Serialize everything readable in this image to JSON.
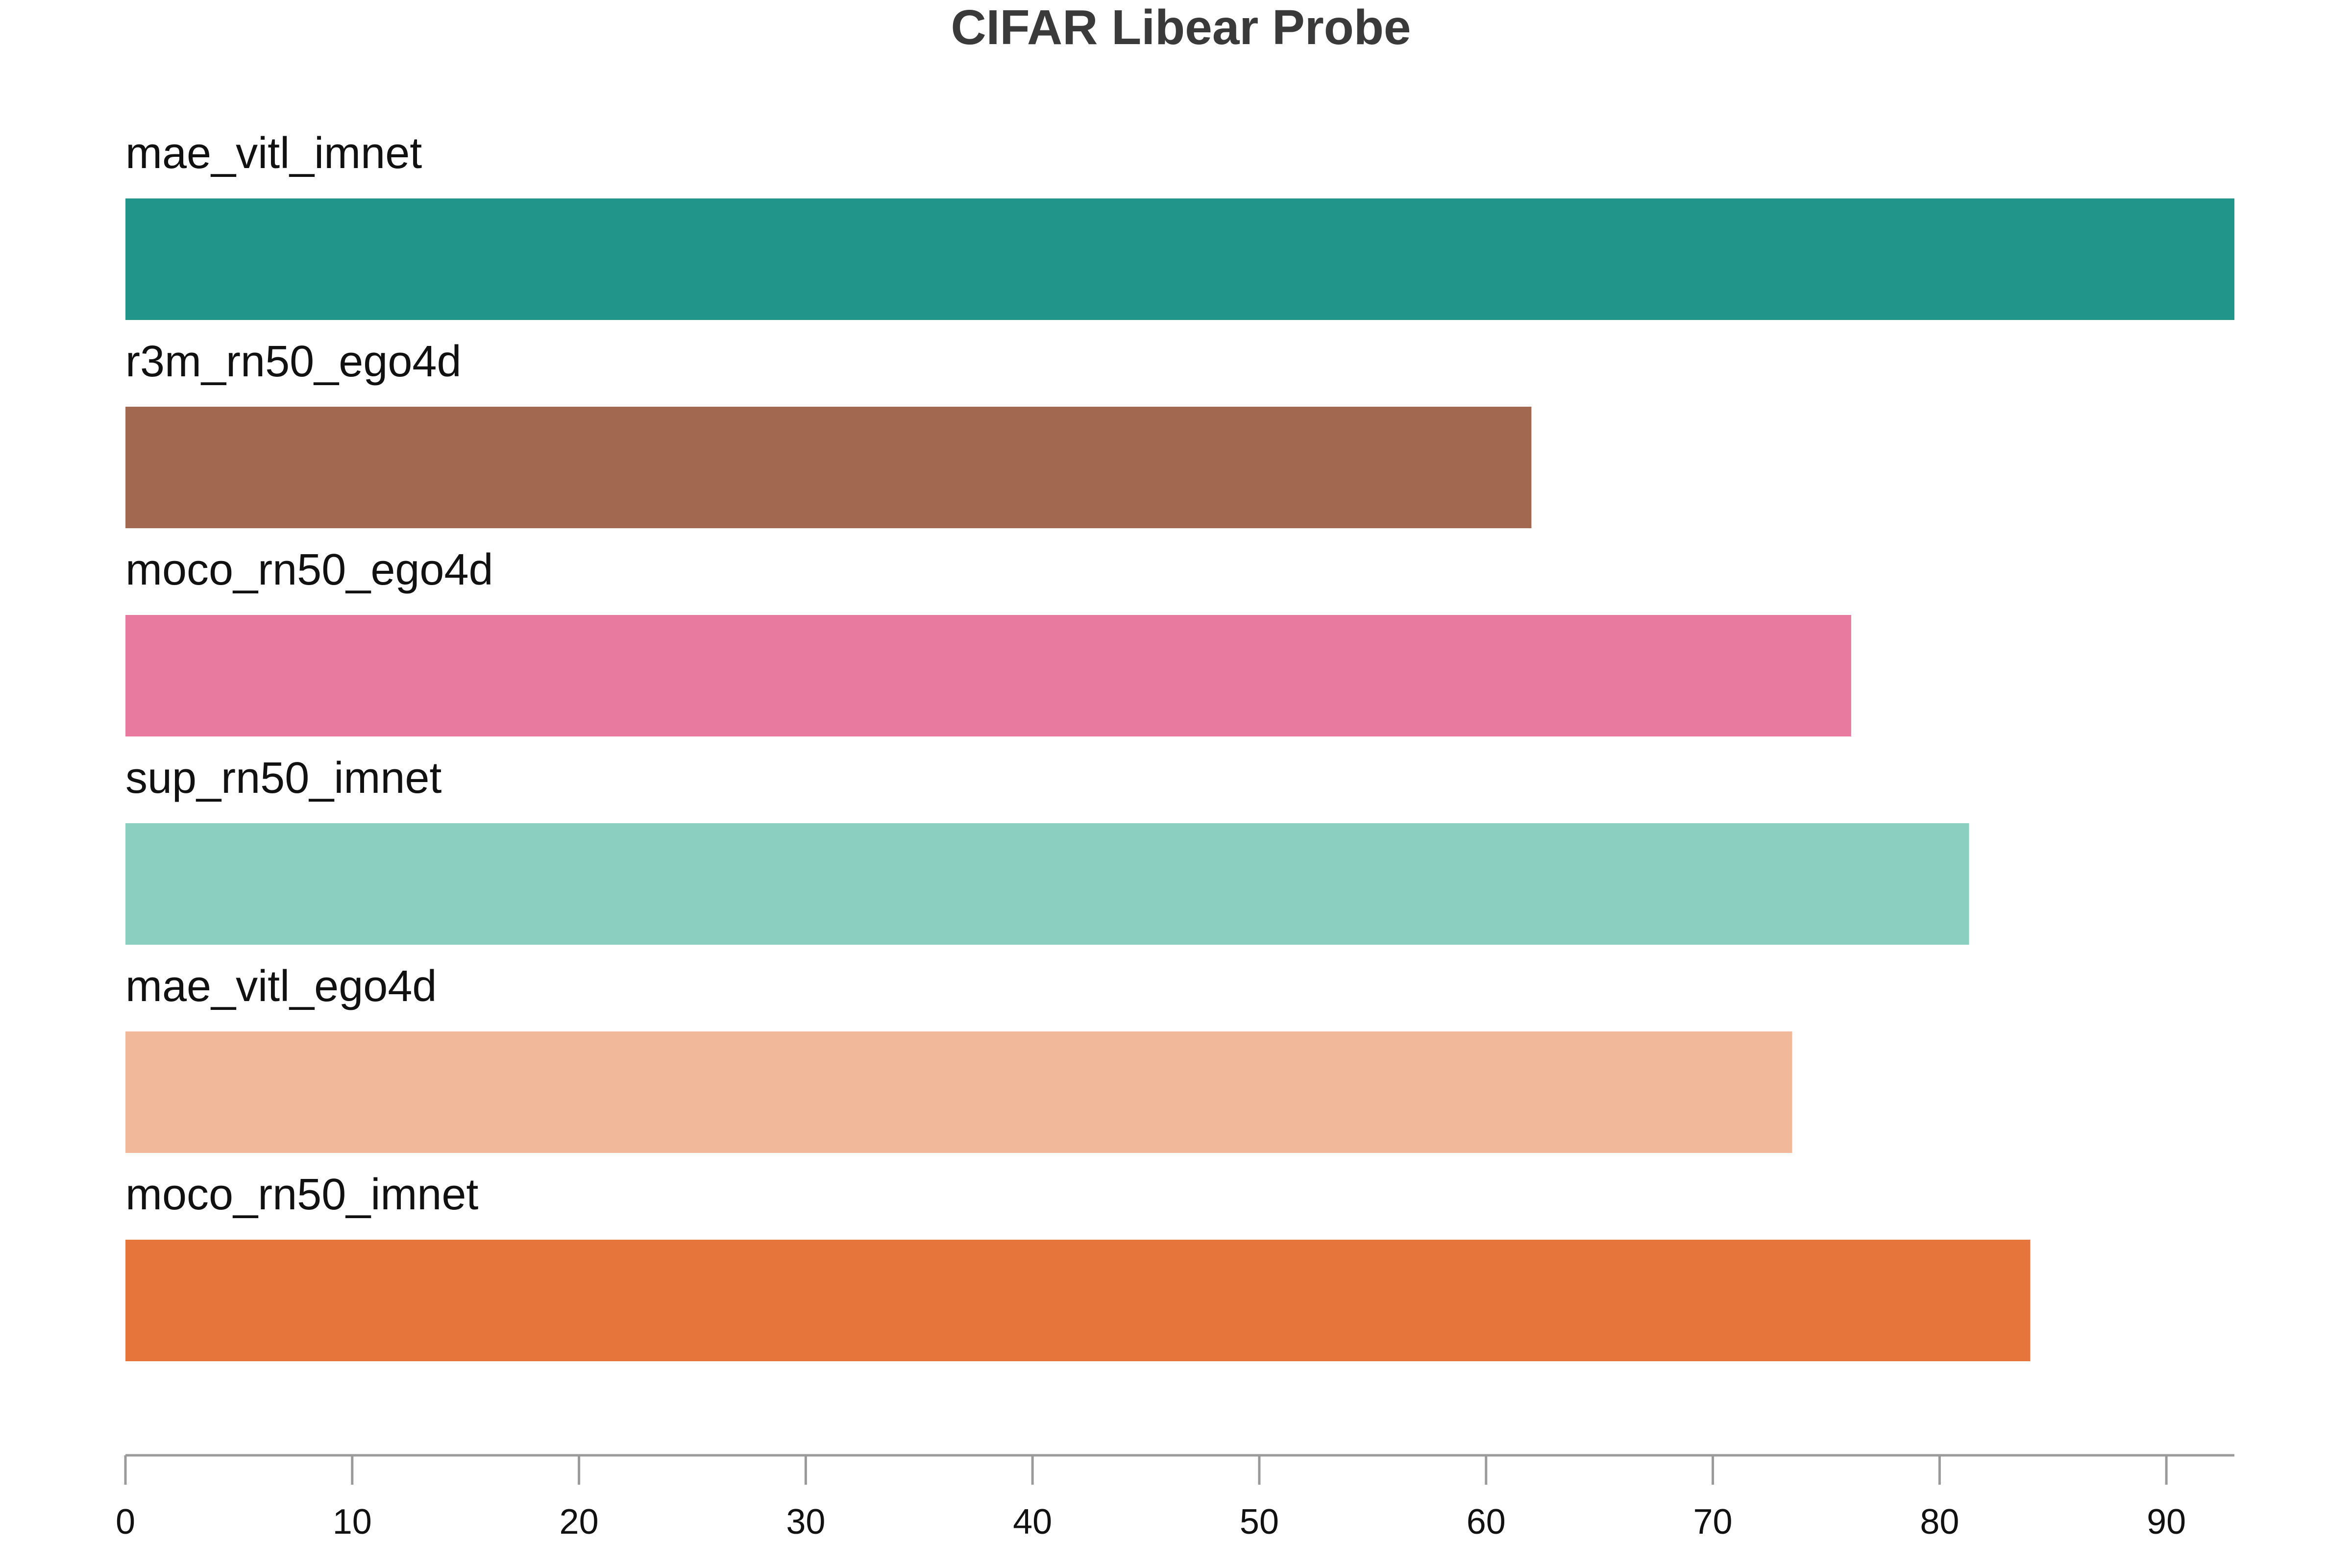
{
  "chart_data": {
    "type": "bar",
    "orientation": "horizontal",
    "title": "CIFAR Libear Probe",
    "xlabel": "",
    "ylabel": "",
    "xlim": [
      0,
      93
    ],
    "xticks": [
      0,
      10,
      20,
      30,
      40,
      50,
      60,
      70,
      80,
      90
    ],
    "grid": false,
    "legend": "none",
    "bars": [
      {
        "label": "mae_vitl_imnet",
        "value": 93.0,
        "color": "#22958a"
      },
      {
        "label": "r3m_rn50_ego4d",
        "value": 62.0,
        "color": "#a26950"
      },
      {
        "label": "moco_rn50_ego4d",
        "value": 76.1,
        "color": "#e87a9f"
      },
      {
        "label": "sup_rn50_imnet",
        "value": 81.3,
        "color": "#8acfbf"
      },
      {
        "label": "mae_vitl_ego4d",
        "value": 73.5,
        "color": "#f2b89a"
      },
      {
        "label": "moco_rn50_imnet",
        "value": 84.0,
        "color": "#e5753b"
      }
    ]
  }
}
